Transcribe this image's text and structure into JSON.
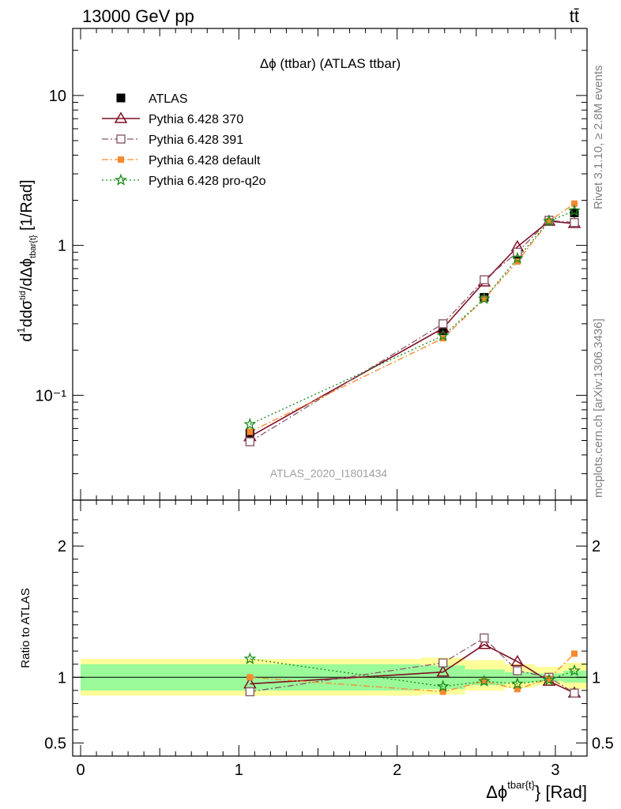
{
  "header": {
    "energy_label": "13000 GeV pp",
    "process_label": "tt̄"
  },
  "side_text": {
    "rivet": "Rivet 3.1.10, ≥ 2.8M events",
    "source": "mcplots.cern.ch [arXiv:1306.3436]"
  },
  "colors": {
    "ATLAS": "#000000",
    "Pythia 6.428 370": "#7f0f25",
    "Pythia 6.428 391": "#8a5a6a",
    "Pythia 6.428 default": "#f58a2e",
    "Pythia 6.428 pro-q2o": "#1a8a1a",
    "band_inner": "#9afa9a",
    "band_outer": "#fdfd99"
  },
  "chart_data": [
    {
      "type": "line",
      "title": "Δϕ (ttbar) (ATLAS ttbar)",
      "watermark": "ATLAS_2020_I1801434",
      "ylabel": "d 1/σ dσ^tid / dΔϕ^{tbar{t}} [1/Rad]",
      "yscale": "log",
      "ylim": [
        0.02,
        28
      ],
      "yticks": [
        {
          "value": 0.1,
          "label": "10⁻¹"
        },
        {
          "value": 1,
          "label": "1"
        },
        {
          "value": 10,
          "label": "10"
        }
      ],
      "xlim": [
        -0.05,
        3.2
      ],
      "legend_position": "top-left",
      "series": [
        {
          "name": "ATLAS",
          "marker": "filled-square",
          "line": "none",
          "x": [
            1.07,
            2.29,
            2.55,
            2.76,
            2.96,
            3.12
          ],
          "y": [
            0.056,
            0.27,
            0.45,
            0.87,
            1.47,
            1.65
          ]
        },
        {
          "name": "Pythia 6.428 370",
          "marker": "open-triangle",
          "line": "solid",
          "x": [
            1.07,
            2.29,
            2.55,
            2.76,
            2.96,
            3.12
          ],
          "y": [
            0.053,
            0.28,
            0.57,
            0.98,
            1.45,
            1.4
          ]
        },
        {
          "name": "Pythia 6.428 391",
          "marker": "open-square",
          "line": "dashdot",
          "x": [
            1.07,
            2.29,
            2.55,
            2.76,
            2.96,
            3.12
          ],
          "y": [
            0.049,
            0.3,
            0.59,
            0.9,
            1.47,
            1.42
          ]
        },
        {
          "name": "Pythia 6.428 default",
          "marker": "small-filled-square",
          "line": "dashdot",
          "x": [
            1.07,
            2.29,
            2.55,
            2.76,
            2.96,
            3.12
          ],
          "y": [
            0.057,
            0.24,
            0.44,
            0.78,
            1.45,
            1.9
          ]
        },
        {
          "name": "Pythia 6.428 pro-q2o",
          "marker": "star",
          "line": "dotted",
          "x": [
            1.07,
            2.29,
            2.55,
            2.76,
            2.96,
            3.12
          ],
          "y": [
            0.064,
            0.25,
            0.44,
            0.82,
            1.45,
            1.7
          ]
        }
      ]
    },
    {
      "type": "line",
      "ylabel": "Ratio to ATLAS",
      "xlabel": "Δϕ^{tbar{t}} [Rad]",
      "ylim": [
        0.4,
        2.35
      ],
      "xlim": [
        -0.05,
        3.2
      ],
      "xticks": [
        0,
        1,
        2,
        3
      ],
      "yticks": [
        0.5,
        1,
        2
      ],
      "reference_line": 1,
      "bands": [
        {
          "x0": 0.0,
          "x1": 2.15,
          "inner": [
            0.9,
            1.1
          ],
          "outer": [
            0.86,
            1.14
          ]
        },
        {
          "x0": 2.15,
          "x1": 2.43,
          "inner": [
            0.91,
            1.09
          ],
          "outer": [
            0.87,
            1.15
          ]
        },
        {
          "x0": 2.43,
          "x1": 2.68,
          "inner": [
            0.94,
            1.06
          ],
          "outer": [
            0.9,
            1.13
          ]
        },
        {
          "x0": 2.68,
          "x1": 2.87,
          "inner": [
            0.96,
            1.04
          ],
          "outer": [
            0.92,
            1.1
          ]
        },
        {
          "x0": 2.87,
          "x1": 3.05,
          "inner": [
            0.97,
            1.03
          ],
          "outer": [
            0.94,
            1.08
          ]
        },
        {
          "x0": 3.05,
          "x1": 3.2,
          "inner": [
            0.96,
            1.05
          ],
          "outer": [
            0.91,
            1.11
          ]
        }
      ],
      "series": [
        {
          "name": "Pythia 6.428 370",
          "x": [
            1.07,
            2.29,
            2.55,
            2.76,
            2.96,
            3.12
          ],
          "y": [
            0.95,
            1.04,
            1.25,
            1.12,
            0.97,
            0.88
          ]
        },
        {
          "name": "Pythia 6.428 391",
          "x": [
            1.07,
            2.29,
            2.55,
            2.76,
            2.96,
            3.12
          ],
          "y": [
            0.89,
            1.11,
            1.3,
            1.05,
            1.0,
            0.88
          ]
        },
        {
          "name": "Pythia 6.428 default",
          "x": [
            1.07,
            2.29,
            2.55,
            2.76,
            2.96,
            3.12
          ],
          "y": [
            1.0,
            0.89,
            0.97,
            0.91,
            0.99,
            1.18
          ]
        },
        {
          "name": "Pythia 6.428 pro-q2o",
          "x": [
            1.07,
            2.29,
            2.55,
            2.76,
            2.96,
            3.12
          ],
          "y": [
            1.14,
            0.93,
            0.97,
            0.95,
            0.98,
            1.05
          ]
        }
      ]
    }
  ]
}
